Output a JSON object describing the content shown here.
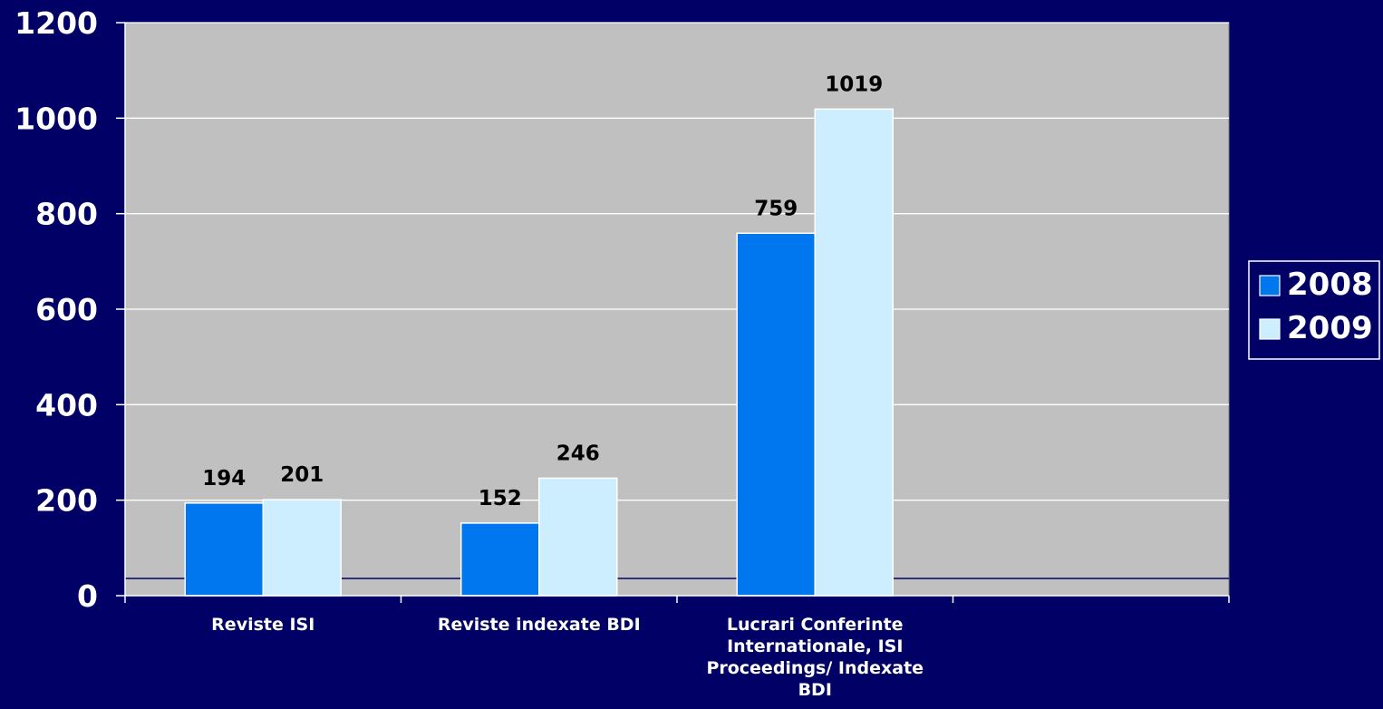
{
  "chart_data": {
    "type": "bar",
    "categories": [
      [
        "Reviste ISI"
      ],
      [
        "Reviste indexate BDI"
      ],
      [
        "Lucrari Conferinte",
        "Internationale, ISI",
        "Proceedings/ Indexate",
        "BDI"
      ],
      [
        ""
      ]
    ],
    "series": [
      {
        "name": "2008",
        "values": [
          194,
          152,
          759,
          null
        ]
      },
      {
        "name": "2009",
        "values": [
          201,
          246,
          1019,
          null
        ]
      }
    ],
    "ylim": [
      0,
      1200
    ],
    "yticks": [
      "0",
      "200",
      "400",
      "600",
      "800",
      "1000",
      "1200"
    ],
    "grid": true,
    "legend": "right",
    "colors": {
      "background": "#000066",
      "plot_area": "#c0c0c0",
      "gridline": "#ffffff",
      "series": [
        "#0077ee",
        "#cceeff"
      ]
    }
  }
}
